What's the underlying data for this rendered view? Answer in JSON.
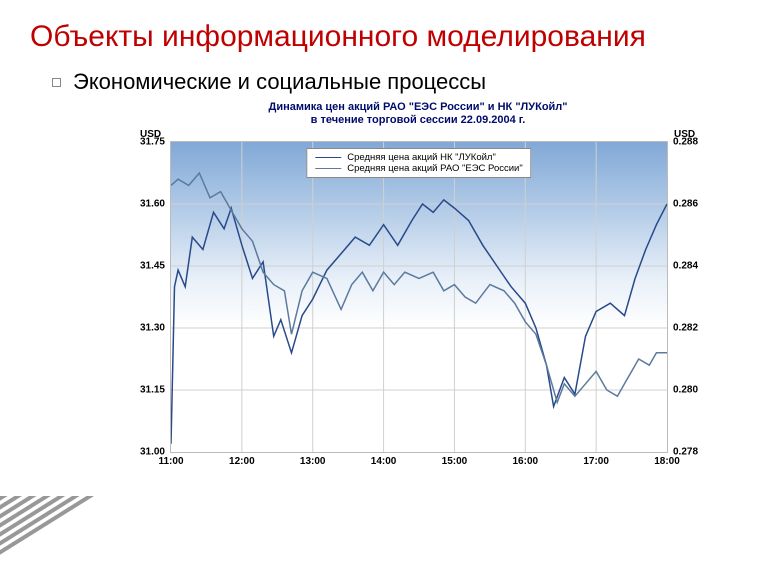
{
  "slide_title": "Объекты информационного моделирования",
  "bullet_text": "Экономические и социальные процессы",
  "chart": {
    "type": "line",
    "title_line1": "Динамика цен акций РАО \"ЕЭС России\" и НК \"ЛУКойл\"",
    "title_line2": "в течение торговой сессии 22.09.2004 г.",
    "title_color": "#000b6b",
    "title_fontsize": 11,
    "left_axis_label": "USD",
    "right_axis_label": "USD",
    "axis_label_fontsize": 10,
    "background_gradient_top": "#739fd1",
    "background_gradient_bottom": "#ffffff",
    "plot_border_color": "#bbbbbb",
    "grid_color": "#d0d0d0",
    "x": {
      "ticks": [
        "11:00",
        "12:00",
        "13:00",
        "14:00",
        "15:00",
        "16:00",
        "17:00",
        "18:00"
      ],
      "min": 11,
      "max": 18
    },
    "y_left": {
      "ticks": [
        31.0,
        31.15,
        31.3,
        31.45,
        31.6,
        31.75
      ],
      "min": 31.0,
      "max": 31.75
    },
    "y_right": {
      "ticks": [
        0.278,
        0.28,
        0.282,
        0.284,
        0.286,
        0.288
      ],
      "min": 0.278,
      "max": 0.288
    },
    "legend": {
      "position": "top-center",
      "border_color": "#888888",
      "fontsize": 9.5,
      "items": [
        {
          "label": "Средняя цена акций НК \"ЛУКойл\"",
          "color": "#284a8a"
        },
        {
          "label": "Средняя цена акций РАО \"ЕЭС России\"",
          "color": "#5b7a9e"
        }
      ]
    },
    "series": [
      {
        "name": "lukoil",
        "axis": "left",
        "color": "#284a8a",
        "line_width": 1.5,
        "points": [
          [
            11.0,
            31.02
          ],
          [
            11.05,
            31.4
          ],
          [
            11.1,
            31.44
          ],
          [
            11.2,
            31.4
          ],
          [
            11.3,
            31.52
          ],
          [
            11.45,
            31.49
          ],
          [
            11.6,
            31.58
          ],
          [
            11.75,
            31.54
          ],
          [
            11.85,
            31.59
          ],
          [
            12.0,
            31.5
          ],
          [
            12.15,
            31.42
          ],
          [
            12.3,
            31.46
          ],
          [
            12.45,
            31.28
          ],
          [
            12.55,
            31.32
          ],
          [
            12.7,
            31.24
          ],
          [
            12.85,
            31.33
          ],
          [
            13.0,
            31.37
          ],
          [
            13.2,
            31.44
          ],
          [
            13.4,
            31.48
          ],
          [
            13.6,
            31.52
          ],
          [
            13.8,
            31.5
          ],
          [
            14.0,
            31.55
          ],
          [
            14.2,
            31.5
          ],
          [
            14.4,
            31.56
          ],
          [
            14.55,
            31.6
          ],
          [
            14.7,
            31.58
          ],
          [
            14.85,
            31.61
          ],
          [
            15.0,
            31.59
          ],
          [
            15.2,
            31.56
          ],
          [
            15.4,
            31.5
          ],
          [
            15.6,
            31.45
          ],
          [
            15.8,
            31.4
          ],
          [
            16.0,
            31.36
          ],
          [
            16.15,
            31.3
          ],
          [
            16.3,
            31.21
          ],
          [
            16.4,
            31.11
          ],
          [
            16.55,
            31.18
          ],
          [
            16.7,
            31.14
          ],
          [
            16.85,
            31.28
          ],
          [
            17.0,
            31.34
          ],
          [
            17.2,
            31.36
          ],
          [
            17.4,
            31.33
          ],
          [
            17.55,
            31.42
          ],
          [
            17.7,
            31.49
          ],
          [
            17.85,
            31.55
          ],
          [
            18.0,
            31.6
          ]
        ]
      },
      {
        "name": "ees",
        "axis": "right",
        "color": "#5b7a9e",
        "line_width": 1.5,
        "points": [
          [
            11.0,
            0.2866
          ],
          [
            11.1,
            0.2868
          ],
          [
            11.25,
            0.2866
          ],
          [
            11.4,
            0.287
          ],
          [
            11.55,
            0.2862
          ],
          [
            11.7,
            0.2864
          ],
          [
            11.85,
            0.2858
          ],
          [
            12.0,
            0.2852
          ],
          [
            12.15,
            0.2848
          ],
          [
            12.3,
            0.2838
          ],
          [
            12.45,
            0.2834
          ],
          [
            12.6,
            0.2832
          ],
          [
            12.7,
            0.2818
          ],
          [
            12.85,
            0.2832
          ],
          [
            13.0,
            0.2838
          ],
          [
            13.2,
            0.2836
          ],
          [
            13.4,
            0.2826
          ],
          [
            13.55,
            0.2834
          ],
          [
            13.7,
            0.2838
          ],
          [
            13.85,
            0.2832
          ],
          [
            14.0,
            0.2838
          ],
          [
            14.15,
            0.2834
          ],
          [
            14.3,
            0.2838
          ],
          [
            14.5,
            0.2836
          ],
          [
            14.7,
            0.2838
          ],
          [
            14.85,
            0.2832
          ],
          [
            15.0,
            0.2834
          ],
          [
            15.15,
            0.283
          ],
          [
            15.3,
            0.2828
          ],
          [
            15.5,
            0.2834
          ],
          [
            15.7,
            0.2832
          ],
          [
            15.85,
            0.2828
          ],
          [
            16.0,
            0.2822
          ],
          [
            16.15,
            0.2818
          ],
          [
            16.3,
            0.2808
          ],
          [
            16.45,
            0.2796
          ],
          [
            16.55,
            0.2802
          ],
          [
            16.7,
            0.2798
          ],
          [
            16.85,
            0.2802
          ],
          [
            17.0,
            0.2806
          ],
          [
            17.15,
            0.28
          ],
          [
            17.3,
            0.2798
          ],
          [
            17.45,
            0.2804
          ],
          [
            17.6,
            0.281
          ],
          [
            17.75,
            0.2808
          ],
          [
            17.85,
            0.2812
          ],
          [
            18.0,
            0.2812
          ]
        ]
      }
    ]
  },
  "decor_stripe_color": "#555555",
  "decor_stripe_count": 10
}
